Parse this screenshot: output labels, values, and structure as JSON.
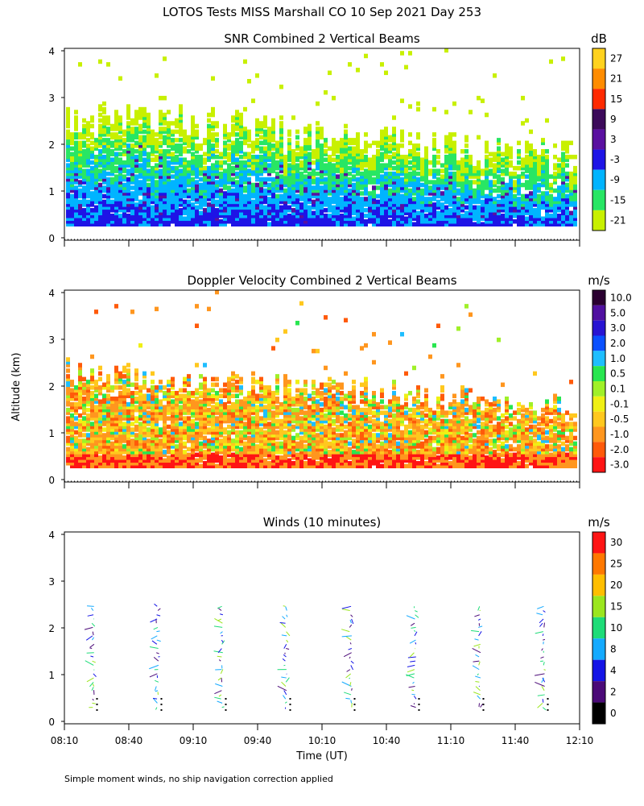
{
  "page": {
    "title": "LOTOS Tests MISS Marshall CO  10 Sep 2021 Day 253",
    "ylabel": "Altitude (km)",
    "xlabel": "Time (UT)",
    "footnote": "Simple moment winds, no ship navigation correction applied",
    "time_ticks": [
      "08:10",
      "08:40",
      "09:10",
      "09:40",
      "10:10",
      "10:40",
      "11:10",
      "11:40",
      "12:10"
    ]
  },
  "chart_data": [
    {
      "type": "heatmap",
      "title": "SNR Combined 2 Vertical Beams",
      "unit": "dB",
      "ylim": [
        0,
        4
      ],
      "yticks": [
        "0",
        "1",
        "2",
        "3",
        "4"
      ],
      "colorbar_labels": [
        "27",
        "21",
        "15",
        "9",
        "3",
        "-3",
        "-9",
        "-15",
        "-21"
      ],
      "colors": [
        "#ffd21e",
        "#ff8c00",
        "#ff2a00",
        "#3c0a5a",
        "#5a10a0",
        "#1e14e6",
        "#00b4ff",
        "#28e664",
        "#c8f000"
      ]
    },
    {
      "type": "heatmap",
      "title": "Doppler Velocity Combined 2 Vertical Beams",
      "unit": "m/s",
      "ylim": [
        0,
        4
      ],
      "yticks": [
        "0",
        "1",
        "2",
        "3",
        "4"
      ],
      "colorbar_labels": [
        "10.0",
        "5.0",
        "3.0",
        "2.0",
        "1.0",
        "0.5",
        "0.1",
        "-0.1",
        "-0.5",
        "-1.0",
        "-2.0",
        "-3.0"
      ],
      "colors": [
        "#2a0030",
        "#5010a0",
        "#2814d2",
        "#0a50ff",
        "#1ebeff",
        "#28e650",
        "#a0f028",
        "#f0f014",
        "#ffc81e",
        "#ff961e",
        "#ff5a0a",
        "#ff1414"
      ]
    },
    {
      "type": "scatter",
      "title": "Winds (10 minutes)",
      "unit": "m/s",
      "ylim": [
        0,
        4
      ],
      "yticks": [
        "0",
        "1",
        "2",
        "3",
        "4"
      ],
      "colorbar_labels": [
        "30",
        "25",
        "20",
        "15",
        "10",
        "8",
        "4",
        "2",
        "0"
      ],
      "colors": [
        "#ff1414",
        "#ff7800",
        "#ffbe00",
        "#9be61e",
        "#1edc78",
        "#14aaff",
        "#1414e6",
        "#4b0a78",
        "#000000"
      ],
      "profile_times": [
        "08:25",
        "08:55",
        "09:25",
        "09:55",
        "10:25",
        "10:55",
        "11:25",
        "11:55"
      ]
    }
  ]
}
